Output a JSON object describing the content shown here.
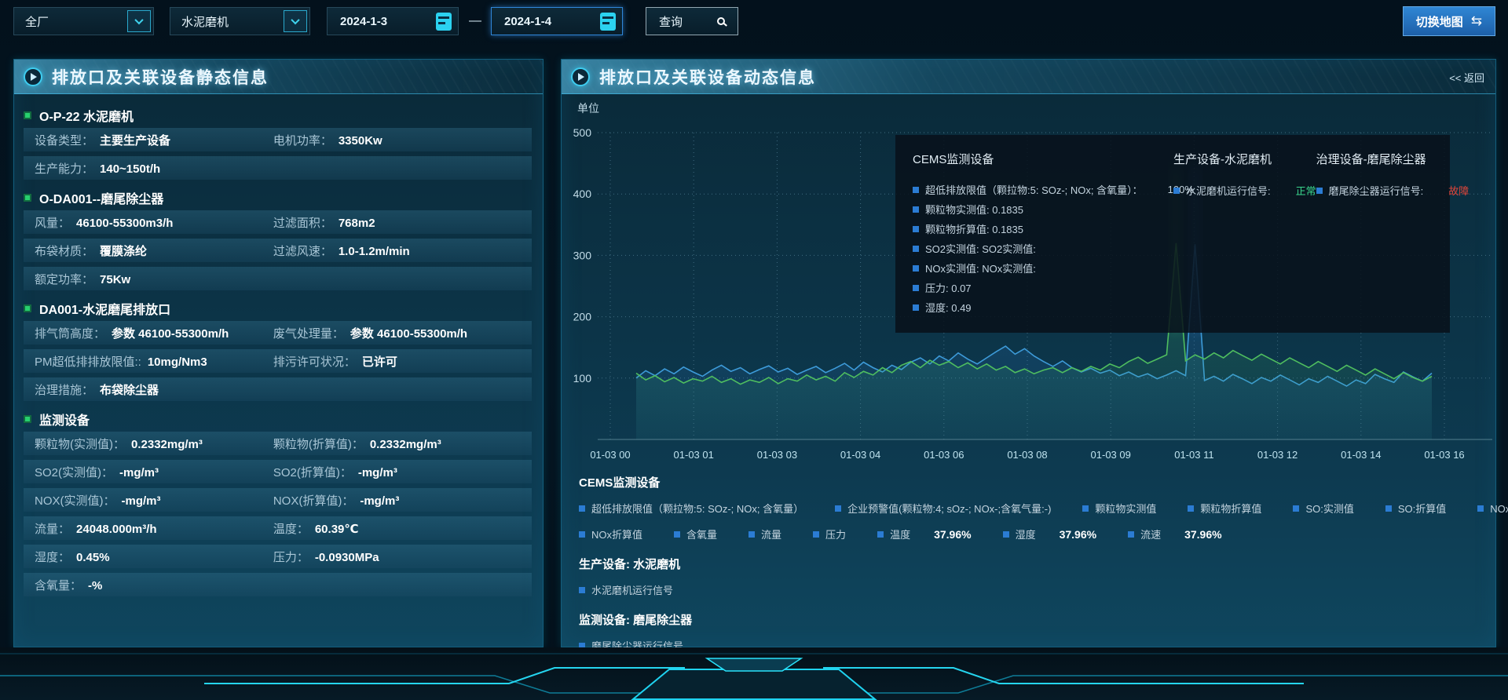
{
  "topbar": {
    "select_plant": "全厂",
    "select_device": "水泥磨机",
    "date_start": "2024-1-3",
    "separator": "—",
    "date_end": "2024-1-4",
    "query_label": "查询",
    "switch_map_label": "切换地图",
    "swap_icon": "⇆"
  },
  "left_panel": {
    "title": "排放口及关联设备静态信息",
    "sections": [
      {
        "title": "O-P-22 水泥磨机",
        "rows": [
          [
            {
              "label": "设备类型：",
              "value": "主要生产设备"
            },
            {
              "label": "电机功率：",
              "value": "3350Kw"
            }
          ],
          [
            {
              "label": "生产能力：",
              "value": "140~150t/h"
            }
          ]
        ]
      },
      {
        "title": "O-DA001--磨尾除尘器",
        "rows": [
          [
            {
              "label": "风量：",
              "value": "46100-55300m3/h"
            },
            {
              "label": "过滤面积：",
              "value": "768m2"
            }
          ],
          [
            {
              "label": "布袋材质：",
              "value": "覆膜涤纶"
            },
            {
              "label": "过滤风速：",
              "value": "1.0-1.2m/min"
            }
          ],
          [
            {
              "label": "额定功率：",
              "value": "75Kw"
            }
          ]
        ]
      },
      {
        "title": "DA001-水泥磨尾排放口",
        "rows": [
          [
            {
              "label": "排气筒高度：",
              "value": "参数 46100-55300m/h"
            },
            {
              "label": "废气处理量：",
              "value": "参数 46100-55300m/h"
            }
          ],
          [
            {
              "label": "PM超低排排放限值::",
              "value": "10mg/Nm3"
            },
            {
              "label": "排污许可状况：",
              "value": "已许可"
            }
          ],
          [
            {
              "label": "治理措施：",
              "value": "布袋除尘器"
            }
          ]
        ]
      },
      {
        "title": "监测设备",
        "rows": [
          [
            {
              "label": "颗粒物(实测值)：",
              "value": "0.2332mg/m³"
            },
            {
              "label": "颗粒物(折算值)：",
              "value": "0.2332mg/m³"
            }
          ],
          [
            {
              "label": "SO2(实测值)：",
              "value": "-mg/m³"
            },
            {
              "label": "SO2(折算值)：",
              "value": "-mg/m³"
            }
          ],
          [
            {
              "label": "NOX(实测值)：",
              "value": "-mg/m³"
            },
            {
              "label": "NOX(折算值)：",
              "value": "-mg/m³"
            }
          ],
          [
            {
              "label": "流量：",
              "value": "24048.000m³/h"
            },
            {
              "label": "温度：",
              "value": "60.39℃"
            }
          ],
          [
            {
              "label": "湿度：",
              "value": "0.45%"
            },
            {
              "label": "压力：",
              "value": "-0.0930MPa"
            }
          ],
          [
            {
              "label": "含氧量：",
              "value": "-%"
            }
          ]
        ]
      }
    ]
  },
  "right_panel": {
    "title": "排放口及关联设备动态信息",
    "back_label": "<< 返回"
  },
  "chart_data": {
    "type": "line",
    "ylabel": "单位",
    "ylim": [
      0,
      500
    ],
    "yticks": [
      100,
      200,
      300,
      400,
      500
    ],
    "grid": true,
    "x_ticks": [
      "01-03 00",
      "01-03 01",
      "01-03 03",
      "01-03 04",
      "01-03 06",
      "01-03 08",
      "01-03 09",
      "01-03 11",
      "01-03 12",
      "01-03 14",
      "01-03 16"
    ],
    "series": [
      {
        "name": "颗粒物实测值",
        "color": "#3d9bd9",
        "values": [
          100,
          112,
          104,
          115,
          107,
          118,
          110,
          103,
          113,
          121,
          111,
          117,
          107,
          114,
          120,
          110,
          116,
          106,
          113,
          119,
          109,
          116,
          124,
          113,
          126,
          117,
          110,
          121,
          114,
          126,
          133,
          123,
          136,
          128,
          141,
          131,
          123,
          133,
          143,
          152,
          139,
          148,
          136,
          127,
          119,
          128,
          117,
          110,
          116,
          108,
          113,
          104,
          110,
          102,
          107,
          99,
          105,
          112,
          104,
          318,
          96,
          103,
          95,
          106,
          99,
          91,
          101,
          95,
          105,
          97,
          89,
          99,
          93,
          103,
          95,
          87,
          97,
          91,
          106,
          99,
          93,
          110,
          102,
          95,
          108
        ]
      },
      {
        "name": "颗粒物折算值",
        "color": "#4fbe5f",
        "values": [
          108,
          97,
          104,
          94,
          101,
          92,
          99,
          95,
          103,
          93,
          99,
          90,
          97,
          93,
          101,
          91,
          99,
          95,
          105,
          97,
          103,
          95,
          109,
          101,
          111,
          105,
          117,
          109,
          121,
          127,
          117,
          129,
          121,
          127,
          117,
          125,
          115,
          123,
          113,
          119,
          109,
          115,
          107,
          113,
          117,
          109,
          117,
          111,
          119,
          113,
          123,
          117,
          127,
          134,
          124,
          131,
          138,
          320,
          128,
          138,
          131,
          141,
          133,
          145,
          137,
          129,
          139,
          131,
          123,
          133,
          125,
          117,
          127,
          119,
          111,
          121,
          113,
          105,
          115,
          107,
          99,
          109,
          101,
          95,
          103
        ]
      }
    ]
  },
  "tooltip": {
    "columns": [
      {
        "title": "CEMS监测设备",
        "items": [
          {
            "label": "超低排放限值（颗拉物:5: SOz-; NOx; 含氧量）：",
            "value": "100%"
          },
          {
            "label": "颗粒物实测值: 0.1835"
          },
          {
            "label": "颗粒物折算值: 0.1835"
          },
          {
            "label": "SO2实测值: SO2实测值:"
          },
          {
            "label": "NOx实测值: NOx实测值:"
          },
          {
            "label": "压力: 0.07"
          },
          {
            "label": "湿度: 0.49"
          }
        ]
      },
      {
        "title": "生产设备-水泥磨机",
        "items": [
          {
            "label": "水泥磨机运行信号:",
            "value": "正常",
            "status": "ok"
          }
        ]
      },
      {
        "title": "治理设备-磨尾除尘器",
        "items": [
          {
            "label": "磨尾除尘器运行信号:",
            "value": "故障",
            "status": "err"
          }
        ]
      }
    ]
  },
  "legend": {
    "cems_title": "CEMS监测设备",
    "row1": [
      "超低排放限值（颗拉物:5: SOz-; NOx; 含氧量）",
      "企业预警值(颗粒物:4; sOz-; NOx-;含氧气量:-)",
      "颗粒物实测值",
      "颗粒物折算值",
      "SO:实测值",
      "SO:折算值",
      "NOx实测值"
    ],
    "row2": [
      {
        "label": "NOx折算值"
      },
      {
        "label": "含氧量"
      },
      {
        "label": "流量"
      },
      {
        "label": "压力"
      },
      {
        "label": "温度",
        "value": "37.96%"
      },
      {
        "label": "湿度",
        "value": "37.96%"
      },
      {
        "label": "流速",
        "value": "37.96%"
      }
    ],
    "production_title": "生产设备: 水泥磨机",
    "production_item": "水泥磨机运行信号",
    "monitor_title": "监测设备: 磨尾除尘器",
    "monitor_item": "磨尾除尘器运行信号"
  },
  "colors": {
    "accent_cyan": "#2fc3e6",
    "status_ok": "#3ad68c",
    "status_error": "#e0453a",
    "legend_square": "#2b7cd3",
    "line_blue": "#3d9bd9",
    "line_green": "#4fbe5f",
    "map_button_blue": "#2b7dd0"
  }
}
